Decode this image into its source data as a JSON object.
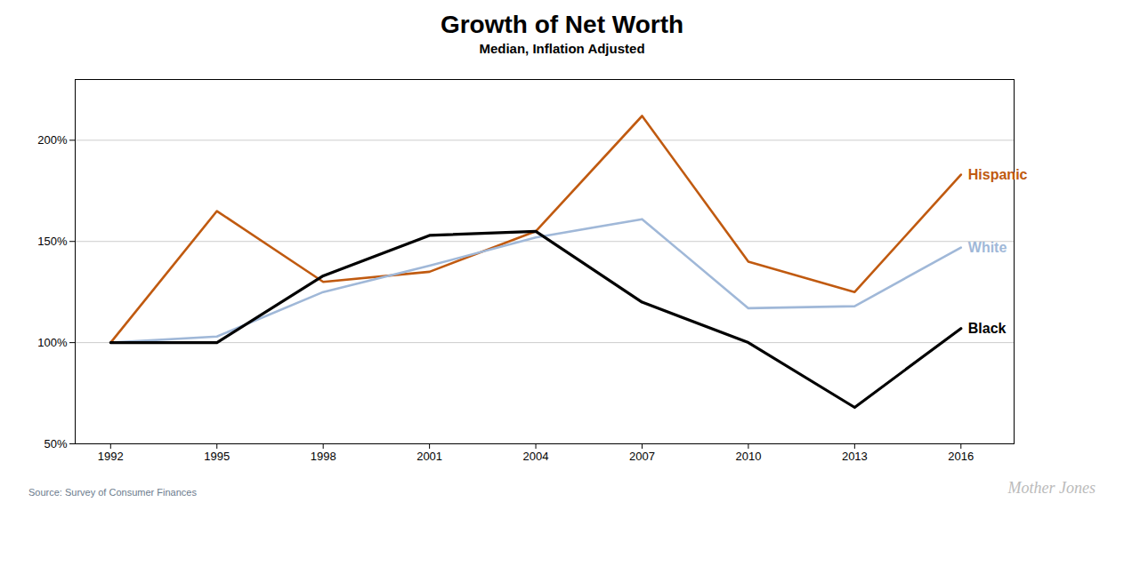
{
  "chart_data": {
    "type": "line",
    "title": "Growth of Net Worth",
    "subtitle": "Median, Inflation Adjusted",
    "annotations": [
      "Source: Survey of Consumer Finances",
      "Mother Jones"
    ],
    "x": [
      1992,
      1995,
      1998,
      2001,
      2004,
      2007,
      2010,
      2013,
      2016
    ],
    "series": [
      {
        "name": "Hispanic",
        "color": "#C05A10",
        "values": [
          100,
          165,
          130,
          135,
          155,
          212,
          140,
          125,
          183
        ]
      },
      {
        "name": "White",
        "color": "#A0B8D8",
        "values": [
          100,
          103,
          125,
          138,
          152,
          161,
          117,
          118,
          147
        ]
      },
      {
        "name": "Black",
        "color": "#000000",
        "values": [
          100,
          100,
          133,
          153,
          155,
          120,
          100,
          68,
          107
        ]
      }
    ],
    "xlim": [
      1991,
      2017.5
    ],
    "xticks": [
      1992,
      1995,
      1998,
      2001,
      2004,
      2007,
      2010,
      2013,
      2016
    ],
    "ylim": [
      50,
      230
    ],
    "yticks": [
      {
        "value": 50,
        "label": "50%"
      },
      {
        "value": 100,
        "label": "100%"
      },
      {
        "value": 150,
        "label": "150%"
      },
      {
        "value": 200,
        "label": "200%"
      }
    ],
    "grid": true
  }
}
